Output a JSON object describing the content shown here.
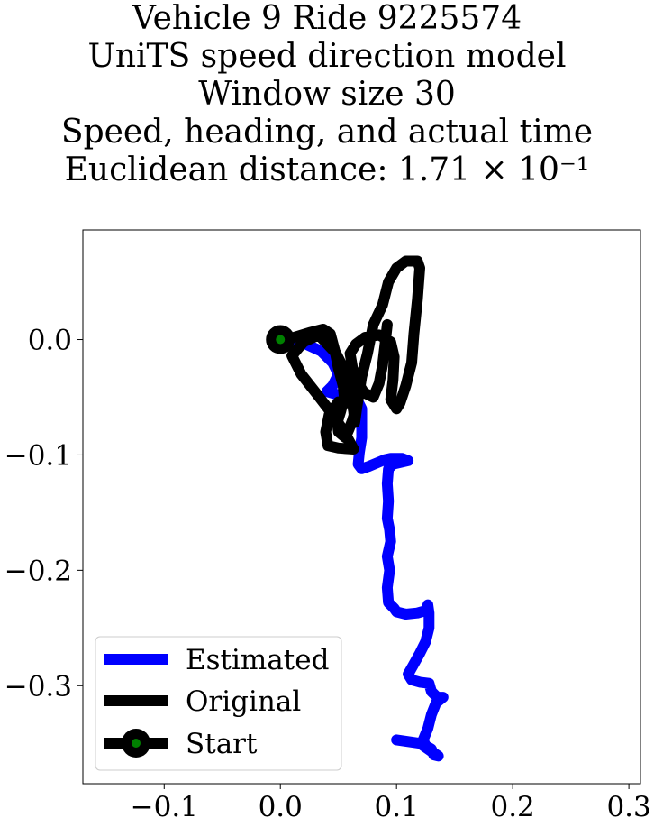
{
  "chart_data": {
    "type": "line",
    "title_lines": [
      "Vehicle 9 Ride 9225574",
      "UniTS speed direction model",
      "Window size 30",
      "Speed, heading, and actual time",
      "Euclidean distance: 1.71 × 10⁻¹"
    ],
    "xlabel": "",
    "ylabel": "",
    "xlim": [
      -0.17,
      0.31
    ],
    "ylim": [
      -0.385,
      0.095
    ],
    "x_ticks": [
      -0.1,
      0.0,
      0.1,
      0.2,
      0.3
    ],
    "x_tick_labels": [
      "−0.1",
      "0.0",
      "0.1",
      "0.2",
      "0.3"
    ],
    "y_ticks": [
      0.0,
      -0.1,
      -0.2,
      -0.3
    ],
    "y_tick_labels": [
      "0.0",
      "−0.1",
      "−0.2",
      "−0.3"
    ],
    "grid": false,
    "legend_position": "bottom-left",
    "series": [
      {
        "name": "Estimated",
        "color": "#0000ff",
        "points": [
          [
            0.0,
            0.0
          ],
          [
            0.02,
            -0.003
          ],
          [
            0.035,
            -0.01
          ],
          [
            0.045,
            -0.02
          ],
          [
            0.05,
            -0.03
          ],
          [
            0.045,
            -0.04
          ],
          [
            0.04,
            -0.045
          ],
          [
            0.05,
            -0.048
          ],
          [
            0.065,
            -0.05
          ],
          [
            0.07,
            -0.06
          ],
          [
            0.07,
            -0.072
          ],
          [
            0.07,
            -0.085
          ],
          [
            0.068,
            -0.098
          ],
          [
            0.067,
            -0.108
          ],
          [
            0.07,
            -0.112
          ],
          [
            0.076,
            -0.11
          ],
          [
            0.083,
            -0.107
          ],
          [
            0.09,
            -0.104
          ],
          [
            0.095,
            -0.103
          ],
          [
            0.105,
            -0.103
          ],
          [
            0.11,
            -0.105
          ],
          [
            0.097,
            -0.108
          ],
          [
            0.093,
            -0.112
          ],
          [
            0.092,
            -0.125
          ],
          [
            0.093,
            -0.14
          ],
          [
            0.092,
            -0.155
          ],
          [
            0.094,
            -0.165
          ],
          [
            0.095,
            -0.175
          ],
          [
            0.092,
            -0.188
          ],
          [
            0.094,
            -0.2
          ],
          [
            0.092,
            -0.215
          ],
          [
            0.093,
            -0.228
          ],
          [
            0.098,
            -0.233
          ],
          [
            0.1,
            -0.236
          ],
          [
            0.108,
            -0.238
          ],
          [
            0.118,
            -0.237
          ],
          [
            0.125,
            -0.235
          ],
          [
            0.127,
            -0.23
          ],
          [
            0.128,
            -0.237
          ],
          [
            0.128,
            -0.25
          ],
          [
            0.125,
            -0.262
          ],
          [
            0.12,
            -0.272
          ],
          [
            0.114,
            -0.283
          ],
          [
            0.11,
            -0.29
          ],
          [
            0.113,
            -0.295
          ],
          [
            0.12,
            -0.297
          ],
          [
            0.128,
            -0.298
          ],
          [
            0.13,
            -0.305
          ],
          [
            0.135,
            -0.31
          ],
          [
            0.14,
            -0.31
          ],
          [
            0.134,
            -0.315
          ],
          [
            0.13,
            -0.325
          ],
          [
            0.127,
            -0.337
          ],
          [
            0.123,
            -0.347
          ],
          [
            0.125,
            -0.352
          ],
          [
            0.13,
            -0.355
          ],
          [
            0.132,
            -0.36
          ],
          [
            0.136,
            -0.361
          ],
          [
            0.13,
            -0.357
          ],
          [
            0.12,
            -0.35
          ],
          [
            0.1,
            -0.347
          ]
        ]
      },
      {
        "name": "Original",
        "color": "#000000",
        "points": [
          [
            0.0,
            0.0
          ],
          [
            0.012,
            0.002
          ],
          [
            0.025,
            0.006
          ],
          [
            0.037,
            0.009
          ],
          [
            0.043,
            0.005
          ],
          [
            0.047,
            -0.01
          ],
          [
            0.05,
            -0.025
          ],
          [
            0.054,
            -0.04
          ],
          [
            0.055,
            -0.05
          ],
          [
            0.052,
            -0.062
          ],
          [
            0.049,
            -0.072
          ],
          [
            0.05,
            -0.08
          ],
          [
            0.056,
            -0.085
          ],
          [
            0.059,
            -0.078
          ],
          [
            0.062,
            -0.07
          ],
          [
            0.065,
            -0.06
          ],
          [
            0.06,
            -0.055
          ],
          [
            0.05,
            -0.054
          ],
          [
            0.042,
            -0.065
          ],
          [
            0.039,
            -0.08
          ],
          [
            0.041,
            -0.092
          ],
          [
            0.05,
            -0.094
          ],
          [
            0.063,
            -0.095
          ],
          [
            0.055,
            -0.08
          ],
          [
            0.045,
            -0.065
          ],
          [
            0.032,
            -0.048
          ],
          [
            0.018,
            -0.03
          ],
          [
            0.01,
            -0.014
          ],
          [
            0.02,
            -0.002
          ],
          [
            0.033,
            0.004
          ],
          [
            0.048,
            -0.012
          ],
          [
            0.057,
            -0.03
          ],
          [
            0.06,
            -0.045
          ],
          [
            0.063,
            -0.062
          ],
          [
            0.064,
            -0.072
          ],
          [
            0.066,
            -0.058
          ],
          [
            0.07,
            -0.032
          ],
          [
            0.075,
            -0.012
          ],
          [
            0.08,
            0.013
          ],
          [
            0.088,
            0.03
          ],
          [
            0.093,
            0.05
          ],
          [
            0.1,
            0.062
          ],
          [
            0.108,
            0.068
          ],
          [
            0.118,
            0.068
          ],
          [
            0.12,
            0.062
          ],
          [
            0.118,
            0.035
          ],
          [
            0.115,
            0.005
          ],
          [
            0.113,
            -0.02
          ],
          [
            0.108,
            -0.04
          ],
          [
            0.103,
            -0.055
          ],
          [
            0.1,
            -0.06
          ],
          [
            0.095,
            -0.052
          ],
          [
            0.097,
            -0.035
          ],
          [
            0.098,
            -0.015
          ],
          [
            0.095,
            -0.002
          ],
          [
            0.085,
            0.004
          ],
          [
            0.073,
            0.002
          ],
          [
            0.065,
            -0.004
          ],
          [
            0.06,
            -0.012
          ],
          [
            0.062,
            -0.024
          ],
          [
            0.066,
            -0.036
          ],
          [
            0.072,
            -0.046
          ],
          [
            0.08,
            -0.05
          ],
          [
            0.085,
            -0.038
          ],
          [
            0.088,
            -0.022
          ],
          [
            0.09,
            -0.005
          ],
          [
            0.092,
            0.013
          ]
        ]
      },
      {
        "name": "Start",
        "color": "#000000",
        "marker_fill": "#008000",
        "points": [
          [
            0.0,
            0.0
          ]
        ]
      }
    ]
  }
}
